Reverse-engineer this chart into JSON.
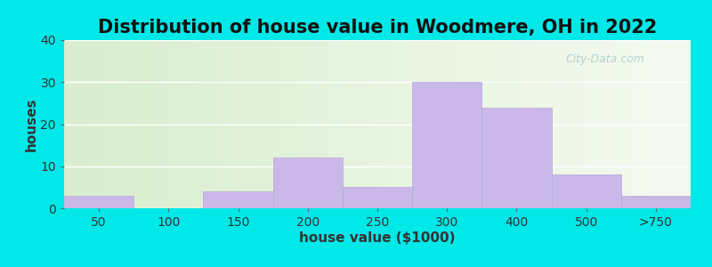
{
  "title": "Distribution of house value in Woodmere, OH in 2022",
  "xlabel": "house value ($1000)",
  "ylabel": "houses",
  "tick_labels": [
    "50",
    "100",
    "150",
    "200",
    "250",
    "300",
    "400",
    "500",
    ">750"
  ],
  "bar_heights": [
    3,
    0,
    4,
    12,
    5,
    30,
    24,
    8,
    3
  ],
  "bar_color": "#c9b8e8",
  "bar_edge_color": "#b8a8d8",
  "ylim": [
    0,
    40
  ],
  "yticks": [
    0,
    10,
    20,
    30,
    40
  ],
  "outer_background": "#00e8e8",
  "bg_color_left": "#d8eecf",
  "bg_color_right": "#f0f8f0",
  "title_fontsize": 15,
  "axis_label_fontsize": 11,
  "tick_fontsize": 10,
  "watermark_text": "City-Data.com"
}
